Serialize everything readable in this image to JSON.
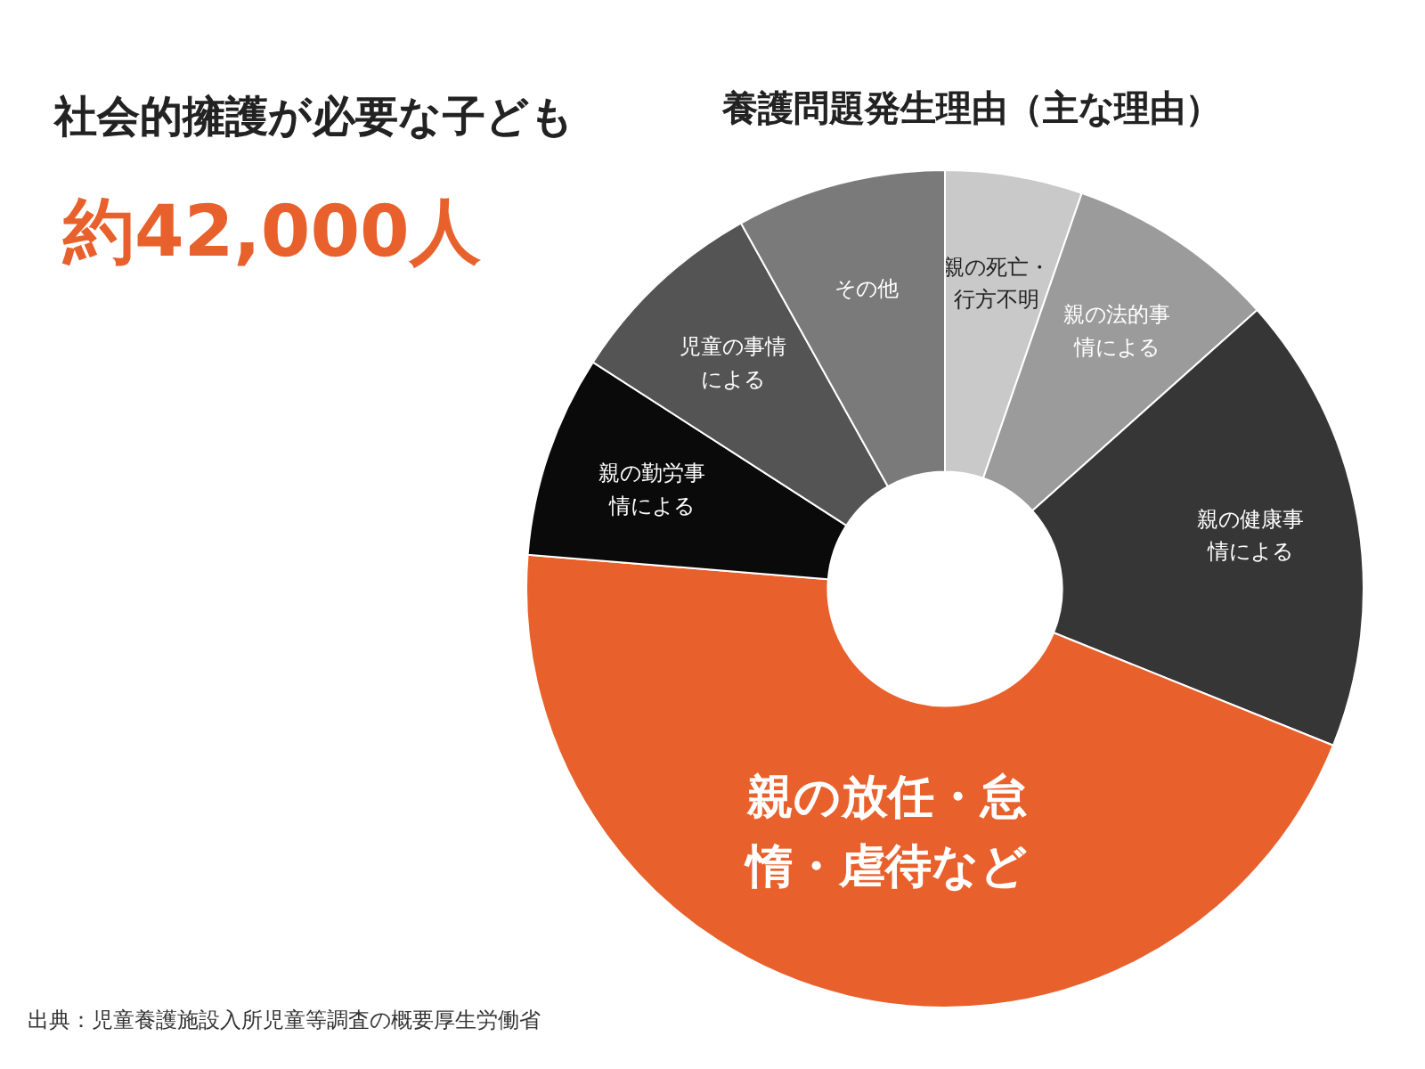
{
  "chart_data": {
    "type": "donut",
    "title": "社会的擁護が必要な子ども",
    "subtitle": "養護問題発生理由（主な理由）",
    "categories": [
      "親の死亡・行方不明",
      "親の法的事情による",
      "親の健康事情による",
      "親の放任・怠惰・虐待など",
      "親の勤労事情による",
      "児童の事情による",
      "その他"
    ],
    "values": [
      5.3,
      8.1,
      17.7,
      45.2,
      7.8,
      7.8,
      8.1
    ],
    "colors": [
      "#c9c9c9",
      "#9b9b9b",
      "#363636",
      "#e8612c",
      "#0a0a0a",
      "#545454",
      "#7a7a7a"
    ],
    "annotations": [
      "約42,000人",
      "出典：児童養護施設入所児童等調査の概要厚生労働省"
    ]
  }
}
